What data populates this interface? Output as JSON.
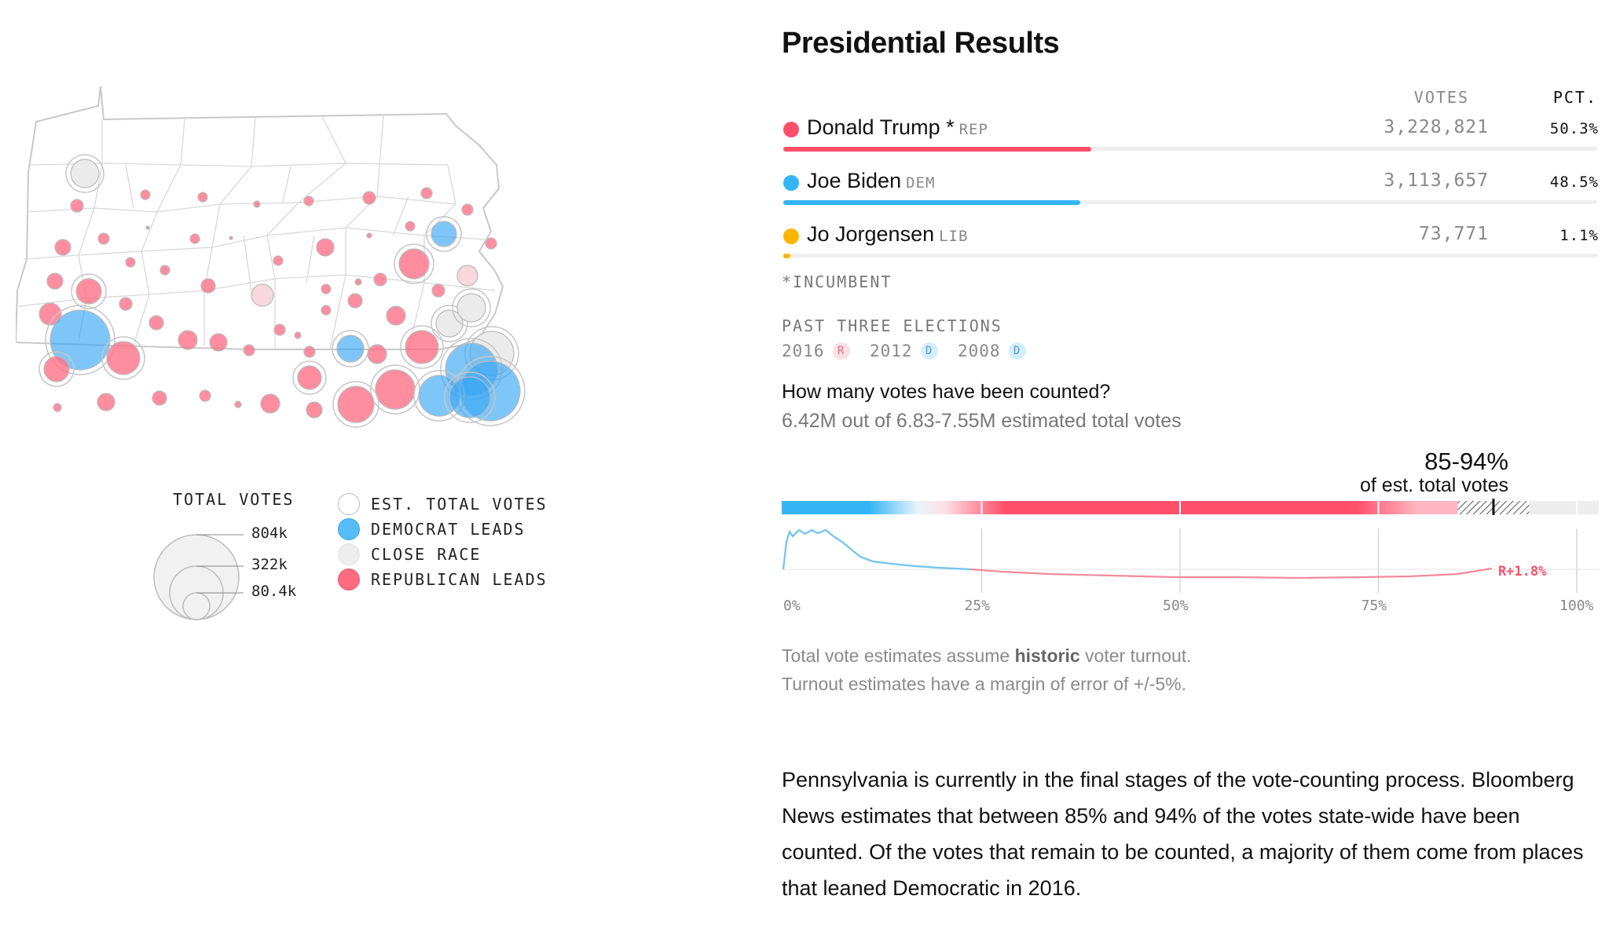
{
  "title": "Presidential Results",
  "headers": {
    "votes": "VOTES",
    "pct": "PCT."
  },
  "candidates": [
    {
      "name": "Donald Trump *",
      "party": "REP",
      "votes": "3,228,821",
      "pct": "50.3%",
      "pct_value": 50.3,
      "color": "#ff4f6a"
    },
    {
      "name": "Joe Biden",
      "party": "DEM",
      "votes": "3,113,657",
      "pct": "48.5%",
      "pct_value": 48.5,
      "color": "#33b5f5"
    },
    {
      "name": "Jo Jorgensen",
      "party": "LIB",
      "votes": "73,771",
      "pct": "1.1%",
      "pct_value": 1.1,
      "color": "#ffb400"
    }
  ],
  "incumbent_note": "*INCUMBENT",
  "past": {
    "label": "PAST THREE ELECTIONS",
    "elections": [
      {
        "year": "2016",
        "winner": "R"
      },
      {
        "year": "2012",
        "winner": "D"
      },
      {
        "year": "2008",
        "winner": "D"
      }
    ]
  },
  "counted": {
    "question": "How many votes have been counted?",
    "answer": "6.42M out of 6.83-7.55M estimated total votes",
    "range": "85-94%",
    "range_sub": "of est. total votes",
    "range_low": 85,
    "range_high": 94,
    "margin_label": "R+1.8%",
    "ticks": [
      "0%",
      "25%",
      "50%",
      "75%",
      "100%"
    ]
  },
  "footnote_1_a": "Total vote estimates assume ",
  "footnote_1_b": "historic",
  "footnote_1_c": " voter turnout.",
  "footnote_2": "Turnout estimates have a margin of error of +/-5%.",
  "paragraph": "Pennsylvania is currently in the final stages of the vote-counting process. Bloomberg News estimates that between 85% and 94% of the votes state-wide have been counted. Of the votes that remain to be counted, a majority of them come from places that leaned Democratic in 2016.",
  "legend": {
    "size_title": "TOTAL VOTES",
    "sizes": [
      "804k",
      "322k",
      "80.4k"
    ],
    "items": [
      "EST. TOTAL VOTES",
      "DEMOCRAT LEADS",
      "CLOSE RACE",
      "REPUBLICAN LEADS"
    ]
  },
  "colors": {
    "rep": "#ff6b81",
    "dem": "#55bdf7",
    "close": "#e8e8e8"
  }
}
